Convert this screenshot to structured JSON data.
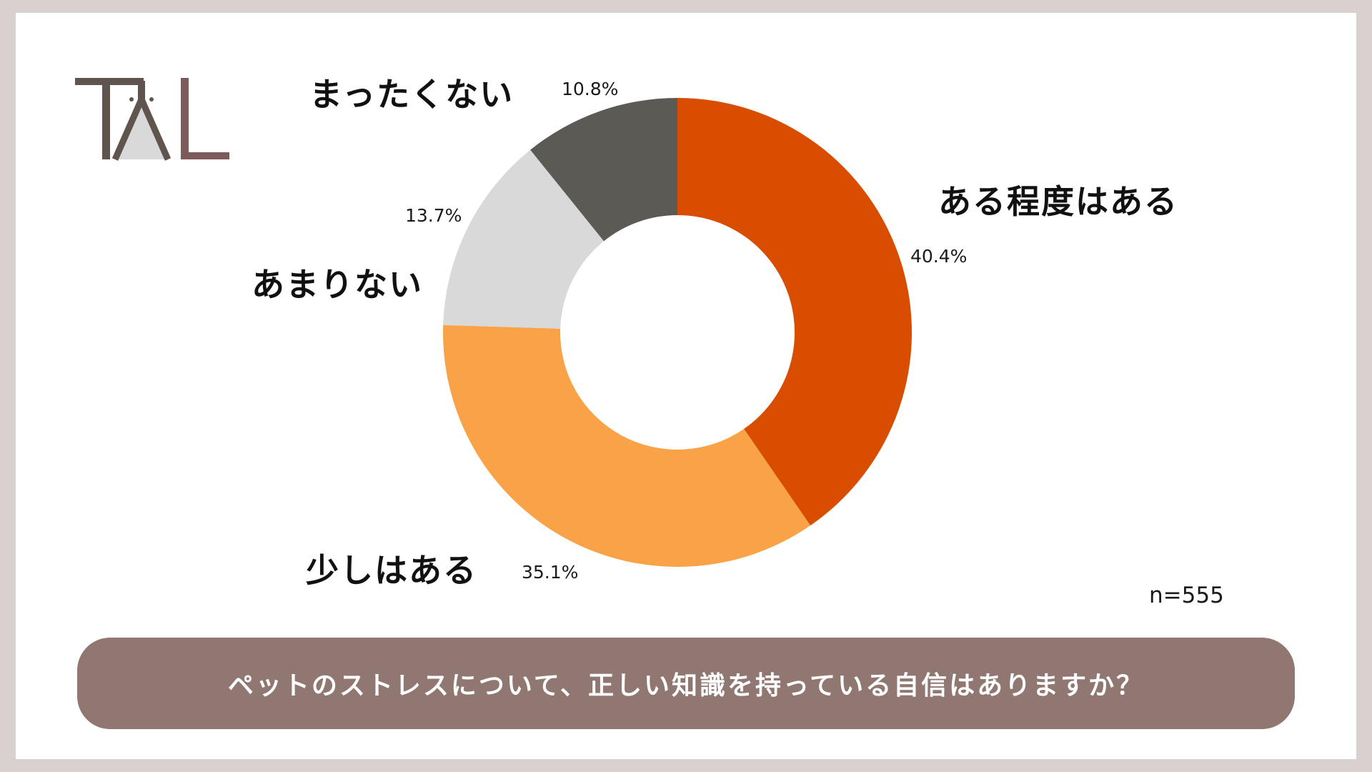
{
  "logo": {
    "text": "TAL",
    "colors": {
      "t": "#5f554e",
      "a_fill": "#d9d9d9",
      "l": "#7f5a5a"
    }
  },
  "chart_data": {
    "type": "pie",
    "variant": "donut",
    "categories": [
      "ある程度はある",
      "少しはある",
      "あまりない",
      "まったくない"
    ],
    "values": [
      40.4,
      35.1,
      13.7,
      10.8
    ],
    "value_labels": [
      "40.4%",
      "35.1%",
      "13.7%",
      "10.8%"
    ],
    "colors": [
      "#d84d00",
      "#f9a247",
      "#d9d9d9",
      "#5c5a55"
    ],
    "start_angle_deg": 0,
    "direction": "clockwise",
    "sample_size": "n=555",
    "question": "ペットのストレスについて、正しい知識を持っている自信はありますか？"
  }
}
